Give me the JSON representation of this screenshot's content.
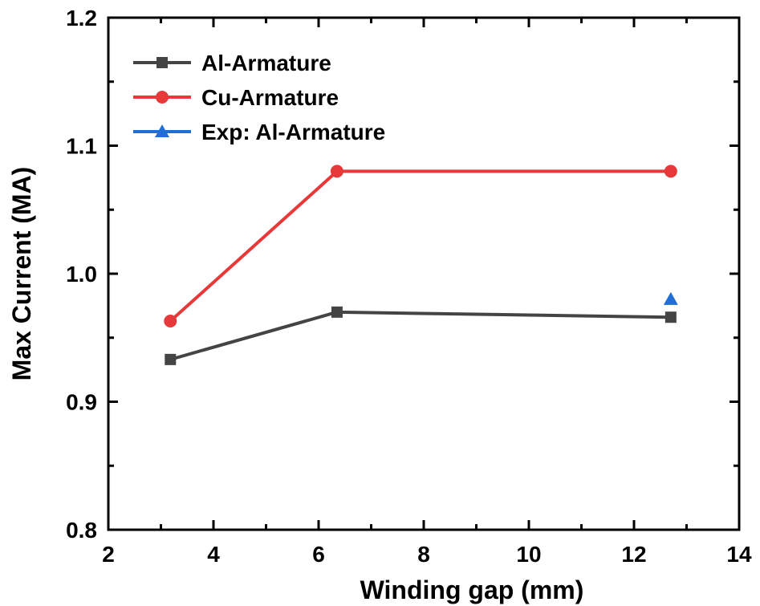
{
  "chart_data": {
    "type": "line",
    "title": "",
    "xlabel": "Winding gap (mm)",
    "ylabel": "Max Current (MA)",
    "xlim": [
      2,
      14
    ],
    "ylim": [
      0.8,
      1.2
    ],
    "xticks": [
      2,
      4,
      6,
      8,
      10,
      12,
      14
    ],
    "yticks": [
      0.8,
      0.9,
      1.0,
      1.1,
      1.2
    ],
    "xtick_labels": [
      "2",
      "4",
      "6",
      "8",
      "10",
      "12",
      "14"
    ],
    "ytick_labels": [
      "0.8",
      "0.9",
      "1.0",
      "1.1",
      "1.2"
    ],
    "grid": false,
    "legend_position": "top-left",
    "series": [
      {
        "name": "Al-Armature",
        "color": "#444444",
        "marker": "square",
        "line": true,
        "x": [
          3.18,
          6.35,
          12.7
        ],
        "y": [
          0.933,
          0.97,
          0.966
        ]
      },
      {
        "name": "Cu-Armature",
        "color": "#e8393a",
        "marker": "circle",
        "line": true,
        "x": [
          3.18,
          6.35,
          12.7
        ],
        "y": [
          0.963,
          1.08,
          1.08
        ]
      },
      {
        "name": "Exp: Al-Armature",
        "color": "#1f6fd6",
        "marker": "triangle",
        "line": false,
        "x": [
          12.7
        ],
        "y": [
          0.98
        ]
      }
    ]
  }
}
